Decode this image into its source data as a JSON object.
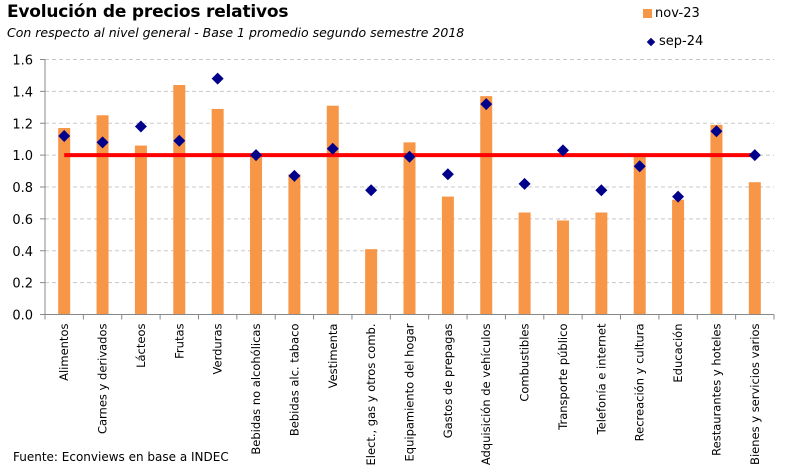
{
  "chart_data": {
    "type": "bar",
    "title": "Evolución de precios relativos",
    "subtitle": "Con respecto al nivel general - Base 1 promedio segundo semestre 2018",
    "source": "Fuente: Econviews en base a INDEC",
    "xlabel": "",
    "ylabel": "",
    "ylim": [
      0,
      1.6
    ],
    "yticks": [
      0.0,
      0.2,
      0.4,
      0.6,
      0.8,
      1.0,
      1.2,
      1.4,
      1.6
    ],
    "ytick_labels": [
      "0.0",
      "0.2",
      "0.4",
      "0.6",
      "0.8",
      "1.0",
      "1.2",
      "1.4",
      "1.6"
    ],
    "grid": true,
    "legend_position": "top-right",
    "reference_line": {
      "value": 1.0,
      "color": "#FF0000"
    },
    "categories": [
      "Alimentos",
      "Carnes y derivados",
      "Lácteos",
      "Frutas",
      "Verduras",
      "Bebidas no alcohólicas",
      "Bebidas alc. tabaco",
      "Vestimenta",
      "Elect., gas y otros comb.",
      "Equipamiento del hogar",
      "Gastos de prepagas",
      "Adquisición de vehículos",
      "Combustibles",
      "Transporte público",
      "Telefonía e internet",
      "Recreación y cultura",
      "Educación",
      "Restaurantes y hoteles",
      "Bienes y servicios varios"
    ],
    "series": [
      {
        "name": "nov-23",
        "type": "bar",
        "color": "#F79646",
        "values": [
          1.17,
          1.25,
          1.06,
          1.44,
          1.29,
          1.0,
          0.88,
          1.31,
          0.41,
          1.08,
          0.74,
          1.37,
          0.64,
          0.59,
          0.64,
          1.0,
          0.72,
          1.19,
          0.83
        ]
      },
      {
        "name": "sep-24",
        "type": "scatter",
        "marker": "diamond",
        "color": "#00008B",
        "values": [
          1.12,
          1.08,
          1.18,
          1.09,
          1.48,
          1.0,
          0.87,
          1.04,
          0.78,
          0.99,
          0.88,
          1.32,
          0.82,
          1.03,
          0.78,
          0.93,
          0.74,
          1.15,
          1.0
        ]
      }
    ]
  }
}
